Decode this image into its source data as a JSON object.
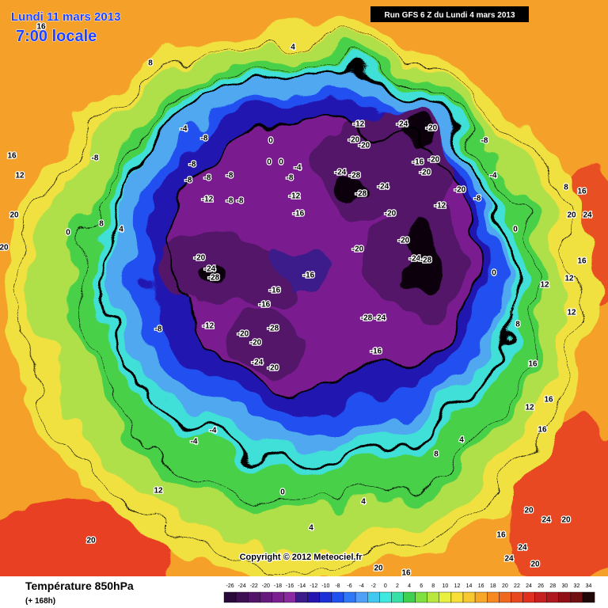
{
  "header": {
    "date": "Lundi 11 mars 2013",
    "time": "7:00 locale",
    "run": "Run GFS 6 Z du Lundi 4 mars 2013"
  },
  "map": {
    "copyright": "Copyright © 2012 Meteociel.fr",
    "contour_labels": [
      16,
      8,
      4,
      -4,
      -8,
      -8,
      -8,
      -8,
      -8,
      -8,
      -12,
      -8,
      -8,
      0,
      0,
      0,
      -4,
      -8,
      -12,
      -16,
      16,
      12,
      20,
      20,
      0,
      8,
      4,
      -12,
      -24,
      -20,
      -20,
      -20,
      -16,
      -20,
      -24,
      -28,
      -28,
      -24,
      -20,
      -20,
      -8,
      -4,
      -8,
      -12,
      -20,
      -20,
      -20,
      -24,
      -28,
      -20,
      -24,
      -28,
      -16,
      -16,
      -16,
      -8,
      -12,
      -20,
      -28,
      -20,
      -24,
      -20,
      -28,
      -24,
      -16,
      0,
      16,
      20,
      24,
      16,
      12,
      12,
      12,
      8,
      16,
      12,
      16,
      16,
      -4,
      -4,
      4,
      8,
      4,
      0,
      4,
      12,
      20,
      24,
      20,
      20,
      16,
      24,
      20,
      24,
      20,
      16,
      8,
      0
    ]
  },
  "footer": {
    "title": "Température 850hPa",
    "subtitle": "(+ 168h)",
    "scale": {
      "ticks": [
        -26,
        -24,
        -22,
        -20,
        -18,
        -16,
        -14,
        -12,
        -10,
        -8,
        -6,
        -4,
        -2,
        0,
        2,
        4,
        6,
        8,
        10,
        12,
        14,
        16,
        18,
        20,
        22,
        24,
        26,
        28,
        30,
        32,
        34
      ],
      "colors": [
        "#2a0a3a",
        "#3e0f52",
        "#521468",
        "#66197c",
        "#7a1f8f",
        "#8a2aa0",
        "#3a1c8a",
        "#2414b0",
        "#1c30d8",
        "#2050f0",
        "#3078f8",
        "#50a0f8",
        "#40c8f0",
        "#40e8e0",
        "#38e0a8",
        "#40d050",
        "#80e040",
        "#b8e840",
        "#e8f040",
        "#f8e038",
        "#f8c830",
        "#f8a828",
        "#f88820",
        "#f06820",
        "#e84820",
        "#e03020",
        "#c82020",
        "#b01820",
        "#901018",
        "#701010",
        "#200808"
      ]
    }
  }
}
